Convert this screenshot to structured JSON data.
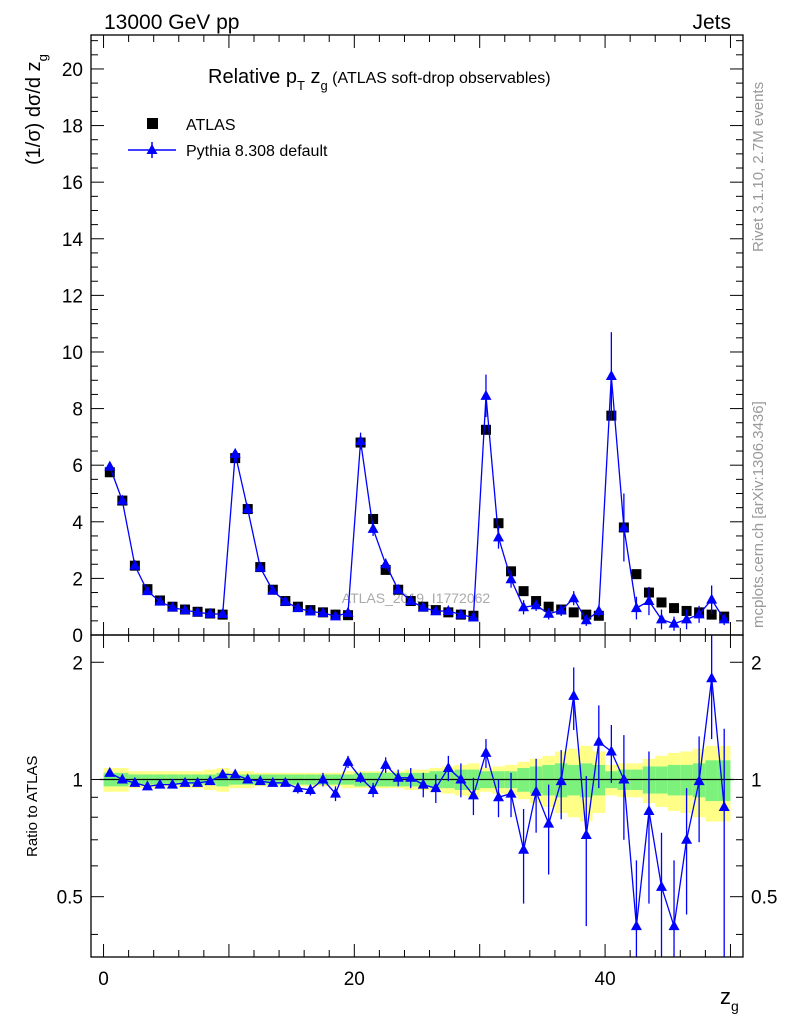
{
  "header": {
    "left": "13000 GeV pp",
    "right": "Jets"
  },
  "chart_data": {
    "type": "scatter",
    "title": "Relative pT zg (ATLAS soft-drop observables)",
    "title_parts": {
      "main": "Relative p",
      "sub1": "T",
      "mid": " z",
      "sub2": "g",
      "tail": " (ATLAS soft-drop observables)"
    },
    "ylabel": "(1/σ) dσ/d z",
    "ylabel_sub": "g",
    "xlabel": "z",
    "xlabel_sub": "g",
    "ratio_ylabel": "Ratio to ATLAS",
    "analysis_label": "ATLAS_2019_I1772062",
    "side_label_top": "Rivet 3.1.10,  2.7M events",
    "side_label_bottom": "mcplots.cern.ch [arXiv:1306.3436]",
    "xlim": [
      -1,
      51
    ],
    "ylim": [
      0,
      21.2
    ],
    "ratio_ylim": [
      0.35,
      2.35
    ],
    "ratio_scale": "log",
    "x_ticks": [
      0,
      20,
      40
    ],
    "x_tick_labels": [
      "0",
      "20",
      "40"
    ],
    "y_ticks": [
      0,
      2,
      4,
      6,
      8,
      10,
      12,
      14,
      16,
      18,
      20
    ],
    "y_tick_labels": [
      "0",
      "2",
      "4",
      "6",
      "8",
      "10",
      "12",
      "14",
      "16",
      "18",
      "20"
    ],
    "ratio_ticks": [
      0.5,
      1,
      2
    ],
    "ratio_tick_labels": [
      "0.5",
      "1",
      "2"
    ],
    "legend_placement": "top-left",
    "x": [
      0.5,
      1.5,
      2.5,
      3.5,
      4.5,
      5.5,
      6.5,
      7.5,
      8.5,
      9.5,
      10.5,
      11.5,
      12.5,
      13.5,
      14.5,
      15.5,
      16.5,
      17.5,
      18.5,
      19.5,
      20.5,
      21.5,
      22.5,
      23.5,
      24.5,
      25.5,
      26.5,
      27.5,
      28.5,
      29.5,
      30.5,
      31.5,
      32.5,
      33.5,
      34.5,
      35.5,
      36.5,
      37.5,
      38.5,
      39.5,
      40.5,
      41.5,
      42.5,
      43.5,
      44.5,
      45.5,
      46.5,
      47.5,
      48.5,
      49.5
    ],
    "series": [
      {
        "name": "ATLAS",
        "color": "#000000",
        "marker": "square",
        "values": [
          5.75,
          4.75,
          2.45,
          1.62,
          1.22,
          1.0,
          0.9,
          0.82,
          0.76,
          0.72,
          6.25,
          4.45,
          2.4,
          1.6,
          1.2,
          1.0,
          0.88,
          0.8,
          0.72,
          0.7,
          6.8,
          4.1,
          2.3,
          1.6,
          1.2,
          1.0,
          0.88,
          0.8,
          0.72,
          0.68,
          7.25,
          3.95,
          2.25,
          1.55,
          1.2,
          1.0,
          0.9,
          0.8,
          0.72,
          0.68,
          7.75,
          3.8,
          2.15,
          1.5,
          1.15,
          0.95,
          0.85,
          0.8,
          0.72,
          0.65
        ]
      },
      {
        "name": "Pythia 8.308 default",
        "color": "#0000ff",
        "marker": "triangle",
        "values": [
          5.95,
          4.75,
          2.45,
          1.55,
          1.18,
          0.97,
          0.88,
          0.8,
          0.75,
          0.74,
          6.4,
          4.45,
          2.38,
          1.57,
          1.18,
          0.95,
          0.83,
          0.78,
          0.66,
          0.78,
          6.85,
          3.75,
          2.5,
          1.6,
          1.2,
          0.97,
          0.84,
          0.85,
          0.72,
          0.62,
          8.45,
          3.45,
          1.97,
          0.98,
          1.05,
          0.75,
          0.87,
          1.3,
          0.52,
          0.85,
          9.15,
          3.8,
          0.95,
          1.2,
          0.55,
          0.4,
          0.55,
          0.73,
          1.25,
          0.55
        ],
        "errors": [
          0.08,
          0.06,
          0.05,
          0.05,
          0.04,
          0.04,
          0.04,
          0.04,
          0.04,
          0.04,
          0.15,
          0.12,
          0.1,
          0.08,
          0.08,
          0.07,
          0.07,
          0.07,
          0.06,
          0.07,
          0.3,
          0.25,
          0.2,
          0.15,
          0.12,
          0.12,
          0.12,
          0.12,
          0.1,
          0.1,
          0.75,
          0.4,
          0.3,
          0.25,
          0.2,
          0.2,
          0.2,
          0.25,
          0.2,
          0.2,
          1.55,
          1.2,
          0.4,
          0.5,
          0.35,
          0.25,
          0.35,
          0.3,
          0.5,
          0.2
        ]
      }
    ],
    "ratio": [
      1.04,
      1.0,
      0.98,
      0.96,
      0.97,
      0.97,
      0.98,
      0.98,
      0.99,
      1.03,
      1.03,
      1.0,
      0.99,
      0.98,
      0.98,
      0.95,
      0.94,
      1.0,
      0.92,
      1.11,
      1.01,
      0.94,
      1.09,
      1.01,
      1.01,
      0.97,
      0.95,
      1.07,
      1.0,
      0.91,
      1.17,
      0.9,
      0.92,
      0.66,
      0.93,
      0.77,
      0.99,
      1.64,
      0.72,
      1.25,
      1.18,
      1.0,
      0.42,
      0.83,
      0.53,
      0.42,
      0.7,
      0.99,
      1.82,
      0.85
    ],
    "ratio_errors": [
      0.02,
      0.02,
      0.02,
      0.02,
      0.02,
      0.02,
      0.02,
      0.02,
      0.02,
      0.02,
      0.02,
      0.02,
      0.02,
      0.02,
      0.02,
      0.03,
      0.03,
      0.04,
      0.04,
      0.04,
      0.03,
      0.04,
      0.05,
      0.05,
      0.06,
      0.07,
      0.08,
      0.08,
      0.1,
      0.1,
      0.1,
      0.1,
      0.12,
      0.18,
      0.2,
      0.2,
      0.2,
      0.3,
      0.3,
      0.3,
      0.2,
      0.3,
      0.2,
      0.35,
      0.2,
      0.2,
      0.25,
      0.3,
      0.55,
      0.5
    ],
    "band_inner": [
      0.04,
      0.04,
      0.03,
      0.03,
      0.03,
      0.03,
      0.03,
      0.03,
      0.03,
      0.04,
      0.03,
      0.03,
      0.03,
      0.03,
      0.03,
      0.03,
      0.03,
      0.03,
      0.03,
      0.03,
      0.04,
      0.04,
      0.04,
      0.04,
      0.04,
      0.04,
      0.05,
      0.05,
      0.06,
      0.06,
      0.05,
      0.05,
      0.05,
      0.07,
      0.08,
      0.09,
      0.1,
      0.09,
      0.1,
      0.09,
      0.05,
      0.06,
      0.06,
      0.08,
      0.08,
      0.09,
      0.09,
      0.1,
      0.12,
      0.12
    ],
    "band_outer": [
      0.07,
      0.07,
      0.05,
      0.05,
      0.05,
      0.05,
      0.05,
      0.05,
      0.06,
      0.07,
      0.05,
      0.05,
      0.04,
      0.04,
      0.04,
      0.04,
      0.04,
      0.04,
      0.04,
      0.05,
      0.05,
      0.05,
      0.05,
      0.05,
      0.06,
      0.06,
      0.07,
      0.08,
      0.09,
      0.1,
      0.07,
      0.08,
      0.09,
      0.11,
      0.13,
      0.15,
      0.18,
      0.2,
      0.22,
      0.18,
      0.09,
      0.1,
      0.1,
      0.13,
      0.15,
      0.17,
      0.18,
      0.2,
      0.22,
      0.22
    ],
    "colors": {
      "band_inner": "#7cf27c",
      "band_outer": "#ffff88"
    }
  }
}
